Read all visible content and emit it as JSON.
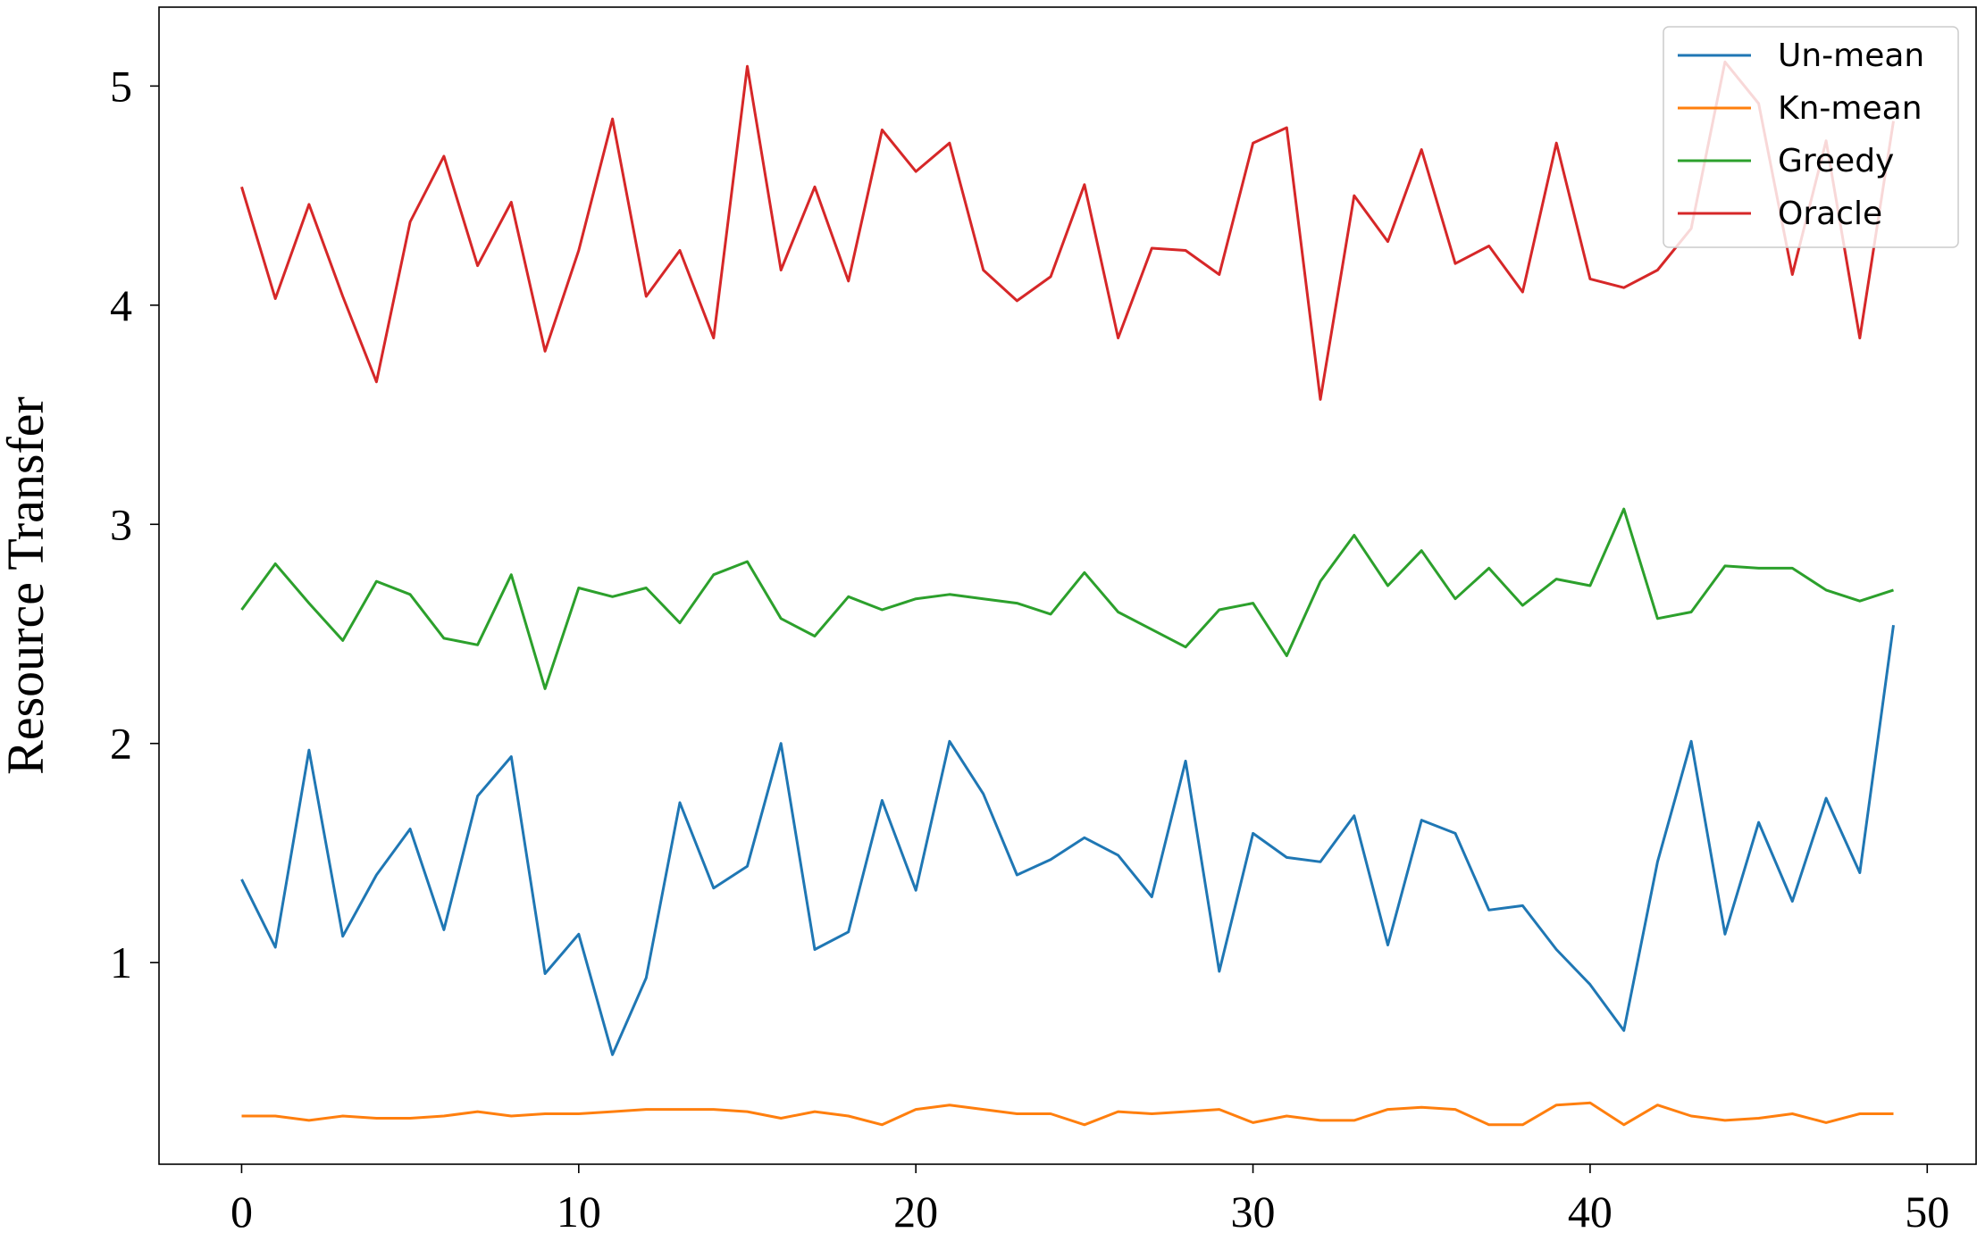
{
  "chart_data": {
    "type": "line",
    "title": "",
    "xlabel": "",
    "ylabel": "Resource Transfer",
    "xlim": [
      -2.45,
      51.45
    ],
    "ylim": [
      0.08,
      5.36
    ],
    "xticks": [
      0,
      10,
      20,
      30,
      40,
      50
    ],
    "yticks": [
      1,
      2,
      3,
      4,
      5
    ],
    "grid": false,
    "legend_position": "top-right",
    "x": [
      0,
      1,
      2,
      3,
      4,
      5,
      6,
      7,
      8,
      9,
      10,
      11,
      12,
      13,
      14,
      15,
      16,
      17,
      18,
      19,
      20,
      21,
      22,
      23,
      24,
      25,
      26,
      27,
      28,
      29,
      30,
      31,
      32,
      33,
      34,
      35,
      36,
      37,
      38,
      39,
      40,
      41,
      42,
      43,
      44,
      45,
      46,
      47,
      48,
      49
    ],
    "series": [
      {
        "name": "Un-mean",
        "color": "#1f77b4",
        "values": [
          1.38,
          1.07,
          1.97,
          1.12,
          1.4,
          1.61,
          1.15,
          1.76,
          1.94,
          0.95,
          1.13,
          0.58,
          0.93,
          1.73,
          1.34,
          1.44,
          2.0,
          1.06,
          1.14,
          1.74,
          1.33,
          2.01,
          1.77,
          1.4,
          1.47,
          1.57,
          1.49,
          1.3,
          1.92,
          0.96,
          1.59,
          1.48,
          1.46,
          1.67,
          1.08,
          1.65,
          1.59,
          1.24,
          1.26,
          1.06,
          0.9,
          0.69,
          1.46,
          2.01,
          1.13,
          1.64,
          1.28,
          1.75,
          1.41,
          2.54
        ]
      },
      {
        "name": "Kn-mean",
        "color": "#ff7f0e",
        "values": [
          0.3,
          0.3,
          0.28,
          0.3,
          0.29,
          0.29,
          0.3,
          0.32,
          0.3,
          0.31,
          0.31,
          0.32,
          0.33,
          0.33,
          0.33,
          0.32,
          0.29,
          0.32,
          0.3,
          0.26,
          0.33,
          0.35,
          0.33,
          0.31,
          0.31,
          0.26,
          0.32,
          0.31,
          0.32,
          0.33,
          0.27,
          0.3,
          0.28,
          0.28,
          0.33,
          0.34,
          0.33,
          0.26,
          0.26,
          0.35,
          0.36,
          0.26,
          0.35,
          0.3,
          0.28,
          0.29,
          0.31,
          0.27,
          0.31,
          0.31
        ]
      },
      {
        "name": "Greedy",
        "color": "#2ca02c",
        "values": [
          2.61,
          2.82,
          2.64,
          2.47,
          2.74,
          2.68,
          2.48,
          2.45,
          2.77,
          2.25,
          2.71,
          2.67,
          2.71,
          2.55,
          2.77,
          2.83,
          2.57,
          2.49,
          2.67,
          2.61,
          2.66,
          2.68,
          2.66,
          2.64,
          2.59,
          2.78,
          2.6,
          2.52,
          2.44,
          2.61,
          2.64,
          2.4,
          2.74,
          2.95,
          2.72,
          2.88,
          2.66,
          2.8,
          2.63,
          2.75,
          2.72,
          3.07,
          2.57,
          2.6,
          2.81,
          2.8,
          2.8,
          2.7,
          2.65,
          2.7
        ]
      },
      {
        "name": "Oracle",
        "color": "#d62728",
        "values": [
          4.54,
          4.03,
          4.46,
          4.04,
          3.65,
          4.38,
          4.68,
          4.18,
          4.47,
          3.79,
          4.25,
          4.85,
          4.04,
          4.25,
          3.85,
          5.09,
          4.16,
          4.54,
          4.11,
          4.8,
          4.61,
          4.74,
          4.16,
          4.02,
          4.13,
          4.55,
          3.85,
          4.26,
          4.25,
          4.14,
          4.74,
          4.81,
          3.57,
          4.5,
          4.29,
          4.71,
          4.19,
          4.27,
          4.06,
          4.74,
          4.12,
          4.08,
          4.16,
          4.35,
          5.11,
          4.92,
          4.14,
          4.75,
          3.85,
          4.84
        ]
      }
    ]
  }
}
